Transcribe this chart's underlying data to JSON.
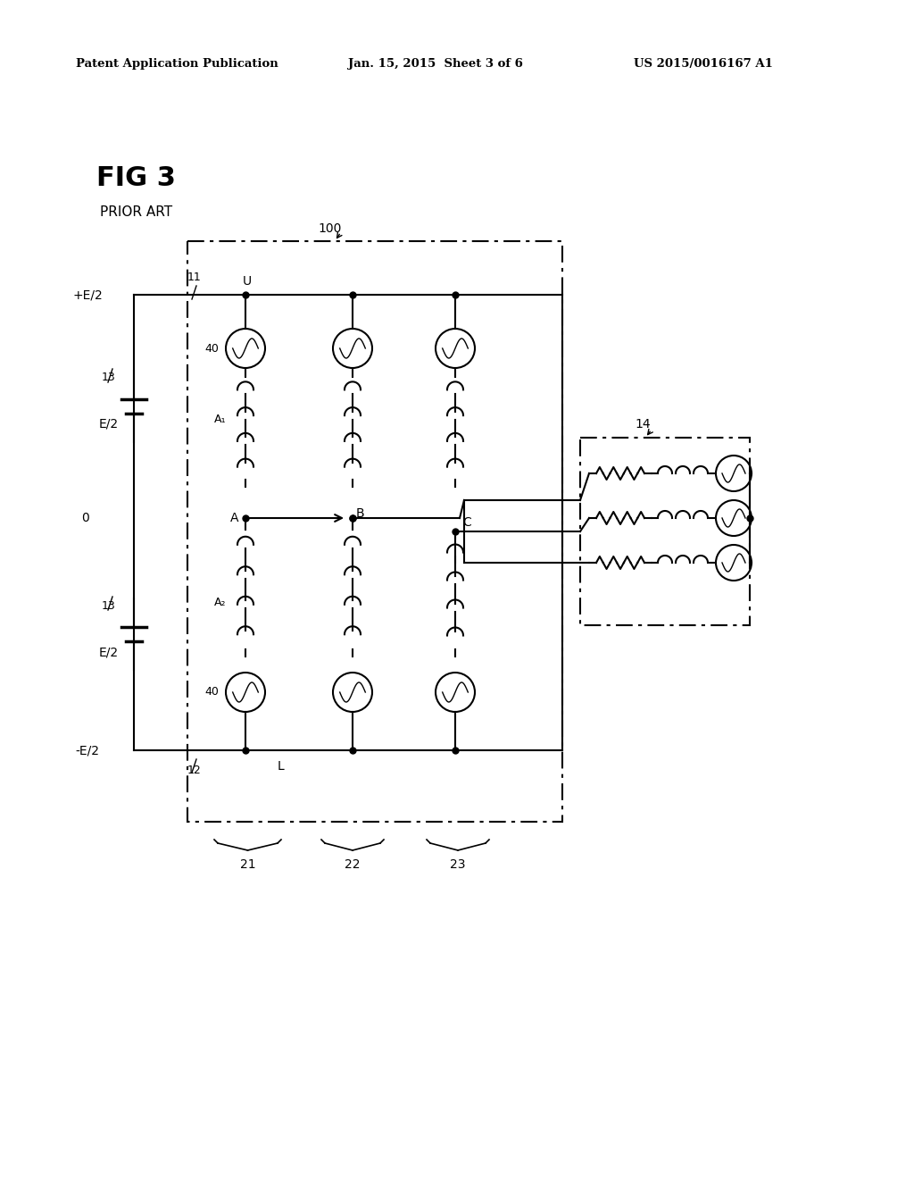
{
  "bg_color": "#ffffff",
  "header_left": "Patent Application Publication",
  "header_center": "Jan. 15, 2015  Sheet 3 of 6",
  "header_right": "US 2015/0016167 A1",
  "fig_title": "FIG 3",
  "prior_art": "PRIOR ART",
  "label_100": "100",
  "label_14": "14",
  "label_11": "11",
  "label_12": "12",
  "label_13a": "13",
  "label_13b": "13",
  "label_40a": "40",
  "label_40b": "40",
  "label_pE2": "+E/2",
  "label_nE2": "-E/2",
  "label_E2a": "E/2",
  "label_E2b": "E/2",
  "label_0": "0",
  "label_U": "U",
  "label_A": "A",
  "label_A1": "A₁",
  "label_A2": "A₂",
  "label_B": "B",
  "label_C": "C",
  "label_L": "L",
  "label_21": "21",
  "label_22": "22",
  "label_23": "23"
}
